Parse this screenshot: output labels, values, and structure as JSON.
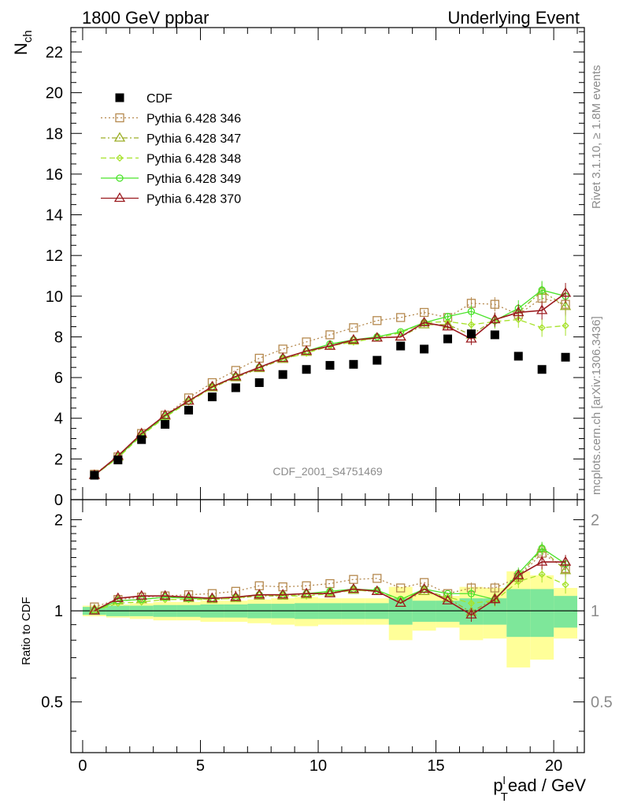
{
  "header": {
    "left_title": "1800 GeV ppbar",
    "right_title": "Underlying Event"
  },
  "side_labels": {
    "rivet": "Rivet 3.1.10, ≥ 1.8M events",
    "mcplots": "mcplots.cern.ch [arXiv:1306.3436]"
  },
  "watermark": "CDF_2001_S4751469",
  "chart_data": {
    "type": "scatter",
    "ylabel_main": "N",
    "ylabel_main_sub": "ch",
    "ylabel_ratio": "Ratio to CDF",
    "xlabel_pre": "p",
    "xlabel_sub": "T",
    "xlabel_sup": "l",
    "xlabel_post": "ead / GeV",
    "xlim": [
      -0.5,
      21.3
    ],
    "ylim_main": [
      0,
      23.2
    ],
    "ylim_ratio": [
      0.34,
      2.33
    ],
    "x_ticks": [
      0,
      5,
      10,
      15,
      20
    ],
    "y_ticks_main": [
      0,
      2,
      4,
      6,
      8,
      10,
      12,
      14,
      16,
      18,
      20,
      22
    ],
    "y_ticks_ratio": [
      0.5,
      1,
      2
    ],
    "x": [
      0.5,
      1.5,
      2.5,
      3.5,
      4.5,
      5.5,
      6.5,
      7.5,
      8.5,
      9.5,
      10.5,
      11.5,
      12.5,
      13.5,
      14.5,
      15.5,
      16.5,
      17.5,
      18.5,
      19.5,
      20.5
    ],
    "data": {
      "name": "CDF",
      "values": [
        1.2,
        1.95,
        2.95,
        3.7,
        4.4,
        5.05,
        5.5,
        5.75,
        6.15,
        6.4,
        6.6,
        6.65,
        6.85,
        7.55,
        7.4,
        7.9,
        8.15,
        8.1,
        7.05,
        6.4,
        7.0
      ]
    },
    "band_inner": [
      [
        0.5,
        0.97,
        1.03
      ],
      [
        1.5,
        0.96,
        1.04
      ],
      [
        2.5,
        0.96,
        1.04
      ],
      [
        3.5,
        0.955,
        1.045
      ],
      [
        4.5,
        0.955,
        1.045
      ],
      [
        5.5,
        0.95,
        1.05
      ],
      [
        6.5,
        0.95,
        1.05
      ],
      [
        7.5,
        0.945,
        1.055
      ],
      [
        8.5,
        0.945,
        1.055
      ],
      [
        9.5,
        0.94,
        1.06
      ],
      [
        10.5,
        0.94,
        1.06
      ],
      [
        11.5,
        0.94,
        1.06
      ],
      [
        12.5,
        0.94,
        1.06
      ],
      [
        13.5,
        0.9,
        1.1
      ],
      [
        14.5,
        0.92,
        1.08
      ],
      [
        15.5,
        0.92,
        1.08
      ],
      [
        16.5,
        0.9,
        1.1
      ],
      [
        17.5,
        0.9,
        1.1
      ],
      [
        18.5,
        0.82,
        1.18
      ],
      [
        19.5,
        0.82,
        1.18
      ],
      [
        20.5,
        0.88,
        1.12
      ]
    ],
    "band_outer": [
      [
        0.5,
        0.96,
        1.04
      ],
      [
        1.5,
        0.95,
        1.05
      ],
      [
        2.5,
        0.94,
        1.06
      ],
      [
        3.5,
        0.93,
        1.07
      ],
      [
        4.5,
        0.93,
        1.07
      ],
      [
        5.5,
        0.92,
        1.08
      ],
      [
        6.5,
        0.92,
        1.08
      ],
      [
        7.5,
        0.91,
        1.09
      ],
      [
        8.5,
        0.9,
        1.1
      ],
      [
        9.5,
        0.89,
        1.11
      ],
      [
        10.5,
        0.9,
        1.1
      ],
      [
        11.5,
        0.9,
        1.1
      ],
      [
        12.5,
        0.9,
        1.1
      ],
      [
        13.5,
        0.8,
        1.2
      ],
      [
        14.5,
        0.86,
        1.14
      ],
      [
        15.5,
        0.88,
        1.12
      ],
      [
        16.5,
        0.8,
        1.2
      ],
      [
        17.5,
        0.81,
        1.19
      ],
      [
        18.5,
        0.65,
        1.35
      ],
      [
        19.5,
        0.69,
        1.31
      ],
      [
        20.5,
        0.81,
        1.19
      ]
    ],
    "series": [
      {
        "name": "Pythia 6.428 346",
        "color": "#b5894e",
        "dash": "2,3",
        "marker": "square",
        "values": [
          1.25,
          2.1,
          3.25,
          4.15,
          5.0,
          5.75,
          6.35,
          6.95,
          7.4,
          7.75,
          8.1,
          8.45,
          8.8,
          8.95,
          9.2,
          8.95,
          9.65,
          9.6,
          9.1,
          9.9,
          9.6
        ],
        "errors": [
          0.05,
          0.05,
          0.05,
          0.05,
          0.05,
          0.05,
          0.06,
          0.06,
          0.07,
          0.07,
          0.08,
          0.09,
          0.1,
          0.1,
          0.12,
          0.15,
          0.3,
          0.35,
          0.4,
          0.45,
          0.5
        ]
      },
      {
        "name": "Pythia 6.428 347",
        "color": "#9cae27",
        "dash": "6,3,2,3",
        "marker": "triangle",
        "values": [
          1.2,
          2.1,
          3.2,
          4.1,
          4.85,
          5.5,
          6.0,
          6.45,
          6.9,
          7.25,
          7.55,
          7.8,
          7.95,
          8.0,
          8.6,
          8.6,
          8.1,
          8.85,
          9.2,
          10.25,
          9.5
        ],
        "errors": [
          0.05,
          0.05,
          0.05,
          0.05,
          0.05,
          0.05,
          0.06,
          0.06,
          0.07,
          0.07,
          0.08,
          0.09,
          0.1,
          0.1,
          0.12,
          0.15,
          0.3,
          0.35,
          0.4,
          0.45,
          0.5
        ]
      },
      {
        "name": "Pythia 6.428 348",
        "color": "#a6e22a",
        "dash": "7,4",
        "marker": "diamond",
        "values": [
          1.2,
          2.05,
          3.15,
          4.05,
          4.8,
          5.5,
          6.05,
          6.5,
          6.9,
          7.2,
          7.55,
          7.75,
          7.95,
          8.2,
          8.7,
          8.75,
          8.6,
          8.75,
          8.85,
          8.45,
          8.55
        ],
        "errors": [
          0.05,
          0.05,
          0.05,
          0.05,
          0.05,
          0.05,
          0.06,
          0.06,
          0.07,
          0.07,
          0.08,
          0.09,
          0.1,
          0.1,
          0.12,
          0.15,
          0.3,
          0.35,
          0.4,
          0.45,
          0.5
        ]
      },
      {
        "name": "Pythia 6.428 349",
        "color": "#4be32b",
        "dash": "",
        "marker": "circle",
        "values": [
          1.2,
          2.1,
          3.2,
          4.1,
          4.85,
          5.55,
          6.05,
          6.5,
          6.95,
          7.3,
          7.65,
          7.85,
          8.0,
          8.25,
          8.7,
          9.0,
          9.25,
          8.8,
          9.4,
          10.3,
          10.0
        ],
        "errors": [
          0.05,
          0.05,
          0.05,
          0.05,
          0.05,
          0.05,
          0.06,
          0.06,
          0.07,
          0.07,
          0.08,
          0.09,
          0.1,
          0.1,
          0.12,
          0.15,
          0.3,
          0.35,
          0.4,
          0.45,
          0.5
        ]
      },
      {
        "name": "Pythia 6.428 370",
        "color": "#9b1a1f",
        "dash": "",
        "marker": "triangle",
        "values": [
          1.2,
          2.15,
          3.25,
          4.15,
          4.85,
          5.55,
          6.05,
          6.5,
          6.95,
          7.3,
          7.55,
          7.85,
          7.95,
          8.0,
          8.7,
          8.5,
          7.9,
          8.85,
          9.2,
          9.3,
          10.15
        ],
        "errors": [
          0.05,
          0.05,
          0.05,
          0.05,
          0.05,
          0.05,
          0.06,
          0.06,
          0.07,
          0.07,
          0.08,
          0.09,
          0.1,
          0.1,
          0.12,
          0.15,
          0.3,
          0.35,
          0.4,
          0.45,
          0.5
        ]
      }
    ],
    "ratio_series": [
      {
        "name": "Pythia 6.428 346",
        "values": [
          1.03,
          1.09,
          1.11,
          1.12,
          1.13,
          1.14,
          1.16,
          1.21,
          1.2,
          1.21,
          1.23,
          1.27,
          1.28,
          1.19,
          1.24,
          1.14,
          1.19,
          1.19,
          1.29,
          1.55,
          1.38
        ]
      },
      {
        "name": "Pythia 6.428 347",
        "values": [
          1.01,
          1.08,
          1.09,
          1.11,
          1.1,
          1.09,
          1.1,
          1.12,
          1.12,
          1.13,
          1.15,
          1.17,
          1.16,
          1.06,
          1.16,
          1.1,
          0.99,
          1.1,
          1.3,
          1.6,
          1.36
        ]
      },
      {
        "name": "Pythia 6.428 348",
        "values": [
          1.0,
          1.06,
          1.07,
          1.09,
          1.09,
          1.09,
          1.1,
          1.13,
          1.12,
          1.12,
          1.14,
          1.17,
          1.16,
          1.09,
          1.17,
          1.11,
          1.06,
          1.08,
          1.25,
          1.32,
          1.22
        ]
      },
      {
        "name": "Pythia 6.428 349",
        "values": [
          1.0,
          1.08,
          1.09,
          1.11,
          1.1,
          1.1,
          1.11,
          1.13,
          1.13,
          1.14,
          1.16,
          1.18,
          1.17,
          1.09,
          1.18,
          1.14,
          1.14,
          1.09,
          1.33,
          1.61,
          1.43
        ]
      },
      {
        "name": "Pythia 6.428 370",
        "values": [
          1.0,
          1.1,
          1.12,
          1.12,
          1.11,
          1.1,
          1.11,
          1.13,
          1.13,
          1.14,
          1.14,
          1.18,
          1.16,
          1.06,
          1.18,
          1.08,
          0.97,
          1.09,
          1.31,
          1.45,
          1.45
        ]
      }
    ],
    "ratio_errors": [
      0.02,
      0.02,
      0.02,
      0.02,
      0.02,
      0.02,
      0.02,
      0.02,
      0.02,
      0.02,
      0.02,
      0.02,
      0.02,
      0.02,
      0.03,
      0.03,
      0.05,
      0.05,
      0.06,
      0.08,
      0.08
    ],
    "legend_position": "upper-left",
    "grid": false
  }
}
